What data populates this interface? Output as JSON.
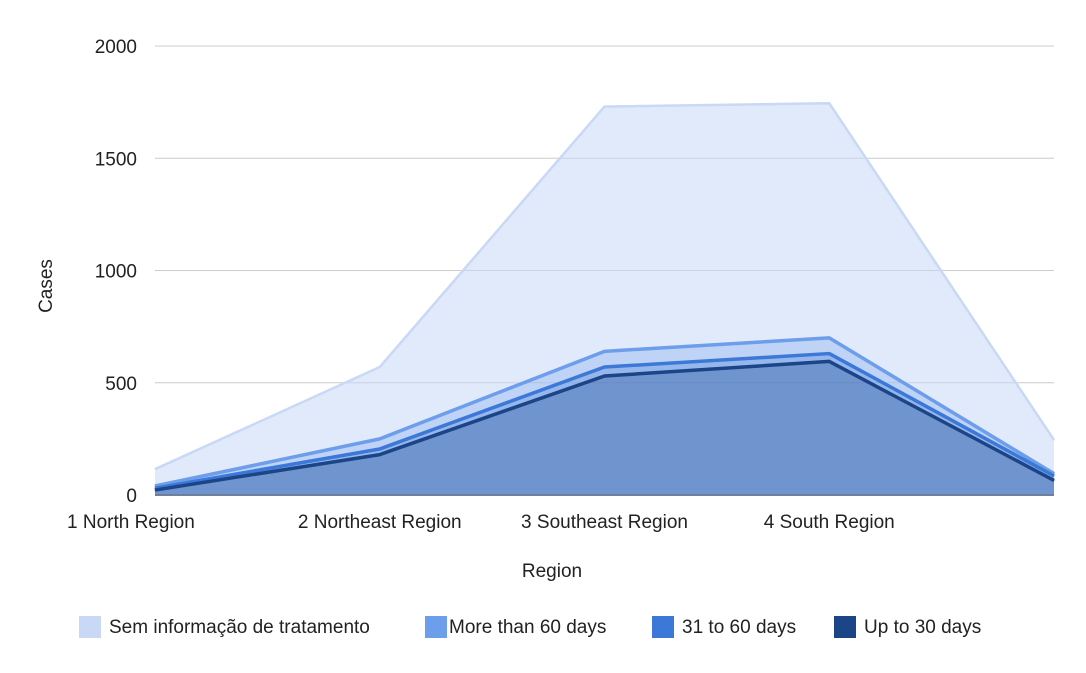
{
  "chart_data": {
    "type": "area",
    "title": "",
    "xlabel": "Region",
    "ylabel": "Cases",
    "ylim": [
      0,
      2000
    ],
    "yticks": [
      0,
      500,
      1000,
      1500,
      2000
    ],
    "grid": true,
    "legend_position": "bottom",
    "categories": [
      "1 North Region",
      "2 Northeast Region",
      "3 Southeast Region",
      "4 South Region",
      ""
    ],
    "series": [
      {
        "name": "Sem informação de tratamento",
        "color": "#c9d8f5",
        "values": [
          115,
          570,
          1730,
          1745,
          245
        ]
      },
      {
        "name": "More than 60 days",
        "color": "#6d9eeb",
        "values": [
          40,
          250,
          640,
          700,
          95
        ]
      },
      {
        "name": "31 to 60 days",
        "color": "#3c78d8",
        "values": [
          30,
          205,
          570,
          630,
          85
        ]
      },
      {
        "name": "Up to 30 days",
        "color": "#1c4587",
        "values": [
          22,
          180,
          530,
          595,
          65
        ]
      }
    ]
  }
}
